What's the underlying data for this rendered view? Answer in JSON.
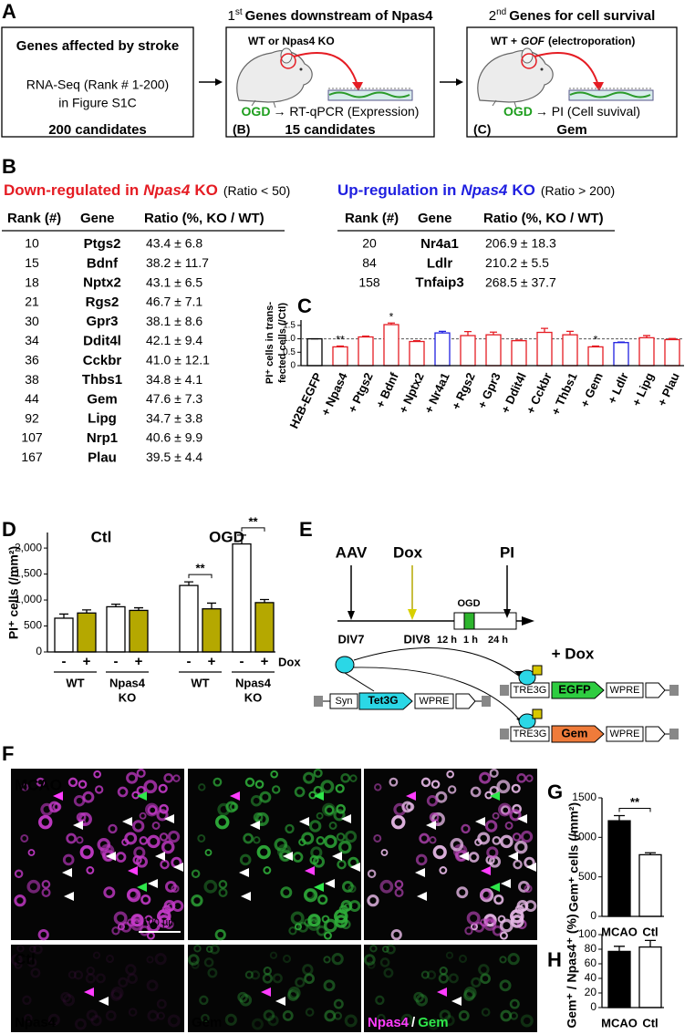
{
  "panel_a": {
    "label": "A",
    "box1": {
      "title": "Genes affected by stroke",
      "lines": [
        "RNA-Seq (Rank # 1-200)",
        "in Figure S1C"
      ],
      "result": "200 candidates"
    },
    "box2": {
      "number": "1",
      "suffix": "st",
      "title": "Genes downstream of Npas4",
      "condition": "WT or Npas4 KO",
      "assay_prefix": "OGD",
      "assay": "→ RT-qPCR (Expression)",
      "ref": "(B)",
      "result": "15 candidates"
    },
    "box3": {
      "number": "2",
      "suffix": "nd",
      "title": "Genes for cell survival",
      "condition": [
        "WT +",
        "GOF",
        "(electroporation)"
      ],
      "assay_prefix": "OGD",
      "assay": "→ PI (Cell suvival)",
      "ref": "(C)",
      "result": "Gem"
    }
  },
  "panel_b": {
    "label": "B",
    "down": {
      "heading": [
        "Down-regulated in",
        "Npas4",
        "KO"
      ],
      "note": "(Ratio < 50)",
      "columns": [
        "Rank (#)",
        "Gene",
        "Ratio (%, KO / WT)"
      ],
      "rows": [
        [
          10,
          "Ptgs2",
          "43.4 ± 6.8"
        ],
        [
          15,
          "Bdnf",
          "38.2 ± 11.7"
        ],
        [
          18,
          "Nptx2",
          "43.1 ± 6.5"
        ],
        [
          21,
          "Rgs2",
          "46.7 ± 7.1"
        ],
        [
          30,
          "Gpr3",
          "38.1 ± 8.6"
        ],
        [
          34,
          "Ddit4l",
          "42.1 ± 9.4"
        ],
        [
          36,
          "Cckbr",
          "41.0 ± 12.1"
        ],
        [
          38,
          "Thbs1",
          "34.8 ± 4.1"
        ],
        [
          44,
          "Gem",
          "47.6 ± 7.3"
        ],
        [
          92,
          "Lipg",
          "34.7 ± 3.8"
        ],
        [
          107,
          "Nrp1",
          "40.6 ± 9.9"
        ],
        [
          167,
          "Plau",
          "39.5 ± 4.4"
        ]
      ]
    },
    "up": {
      "heading": [
        "Up-regulation in",
        "Npas4",
        "KO"
      ],
      "note": "(Ratio > 200)",
      "columns": [
        "Rank (#)",
        "Gene",
        "Ratio (%, KO / WT)"
      ],
      "rows": [
        [
          20,
          "Nr4a1",
          "206.9 ± 18.3"
        ],
        [
          84,
          "Ldlr",
          "210.2 ± 5.5"
        ],
        [
          158,
          "Tnfaip3",
          "268.5 ± 37.7"
        ]
      ]
    }
  },
  "panel_e": {
    "label": "E",
    "timeline": {
      "aav": "AAV",
      "dox": "Dox",
      "pi": "PI",
      "ogd": "OGD",
      "days": [
        "DIV7",
        "DIV8"
      ],
      "durations": [
        "12 h",
        "1 h",
        "24 h"
      ]
    },
    "constructs": {
      "dox": "+ Dox",
      "driver": [
        "Syn",
        "Tet3G",
        "WPRE"
      ],
      "reporters": [
        [
          "TRE3G",
          "EGFP",
          "WPRE"
        ],
        [
          "TRE3G",
          "Gem",
          "WPRE"
        ]
      ]
    }
  },
  "panel_f": {
    "label": "F",
    "rows": [
      "MCAO",
      "Ctl"
    ],
    "scale_bar": "100 µm",
    "channels": [
      "Npas4",
      "Gem"
    ],
    "merge": [
      "Npas4",
      "/",
      "Gem"
    ]
  },
  "chart_data": [
    {
      "label": "C",
      "type": "bar",
      "ylabel": [
        "PI⁺ cells in trans-",
        "fected cells (/Ctl)"
      ],
      "categories": [
        "H2B-EGFP",
        "+ Npas4",
        "+ Ptgs2",
        "+ Bdnf",
        "+ Nptx2",
        "+ Nr4a1",
        "+ Rgs2",
        "+ Gpr3",
        "+ Ddit4l",
        "+ Cckbr",
        "+ Thbs1",
        "+ Gem",
        "+ Ldlr",
        "+ Lipg",
        "+ Plau"
      ],
      "values": [
        1.0,
        0.7,
        1.07,
        1.53,
        0.9,
        1.22,
        1.12,
        1.15,
        0.93,
        1.24,
        1.15,
        0.7,
        0.86,
        1.04,
        0.97
      ],
      "errors": [
        0,
        0.03,
        0.03,
        0.06,
        0.03,
        0.06,
        0.15,
        0.1,
        0.02,
        0.15,
        0.13,
        0.03,
        0.02,
        0.08,
        0.04
      ],
      "colors": [
        "#000000",
        "#e51c23",
        "#e51c23",
        "#e51c23",
        "#e51c23",
        "#1f1fe0",
        "#e51c23",
        "#e51c23",
        "#e51c23",
        "#e51c23",
        "#e51c23",
        "#e51c23",
        "#1f1fe0",
        "#e51c23",
        "#e51c23"
      ],
      "ylim": [
        0,
        1.7
      ],
      "yticks": [
        0,
        0.5,
        {
          "value": 1,
          "label": "1.0"
        },
        1.5
      ],
      "reference_line": 1,
      "annotations": [
        "**",
        "*",
        "*"
      ]
    },
    {
      "label": "D",
      "type": "bar",
      "ylabel": "PI⁺ cells (/mm²)",
      "groups": [
        "Ctl",
        "OGD"
      ],
      "group_colors": [
        "#000000",
        "#1e9e1e"
      ],
      "categories": [
        "-",
        "+",
        "-",
        "+",
        "-",
        "+",
        "-",
        "+"
      ],
      "subgroups": [
        [
          "WT"
        ],
        [
          "Npas4",
          "KO"
        ]
      ],
      "xlabel": "Dox",
      "values": [
        650,
        750,
        870,
        800,
        1280,
        830,
        2080,
        950
      ],
      "errors": [
        80,
        60,
        50,
        50,
        70,
        110,
        170,
        60
      ],
      "colors": [
        "#ffffff",
        "#b5a800",
        "#ffffff",
        "#b5a800",
        "#ffffff",
        "#b5a800",
        "#ffffff",
        "#b5a800"
      ],
      "ylim": [
        0,
        2300
      ],
      "yticks": [
        0,
        500,
        {
          "value": 1000,
          "label": "1,000"
        },
        {
          "value": 1500,
          "label": "1,500"
        },
        {
          "value": 2000,
          "label": "2,000"
        }
      ],
      "annotations": [
        "**",
        "**"
      ]
    },
    {
      "label": "G",
      "type": "bar",
      "ylabel": "Gem⁺ cells (/mm²)",
      "categories": [
        "MCAO",
        "Ctl"
      ],
      "values": [
        1210,
        780
      ],
      "errors": [
        65,
        25
      ],
      "colors": [
        "#000000",
        "#ffffff"
      ],
      "ylim": [
        0,
        1500
      ],
      "yticks": [
        0,
        500,
        1000,
        1500
      ],
      "annotations": [
        "**"
      ]
    },
    {
      "label": "H",
      "type": "bar",
      "ylabel": "Gem⁺ / Npas4⁺ (%)",
      "categories": [
        "MCAO",
        "Ctl"
      ],
      "values": [
        77,
        83
      ],
      "errors": [
        7,
        9
      ],
      "colors": [
        "#000000",
        "#ffffff"
      ],
      "ylim": [
        0,
        100
      ],
      "yticks": [
        0,
        20,
        40,
        60,
        80,
        100
      ]
    }
  ]
}
